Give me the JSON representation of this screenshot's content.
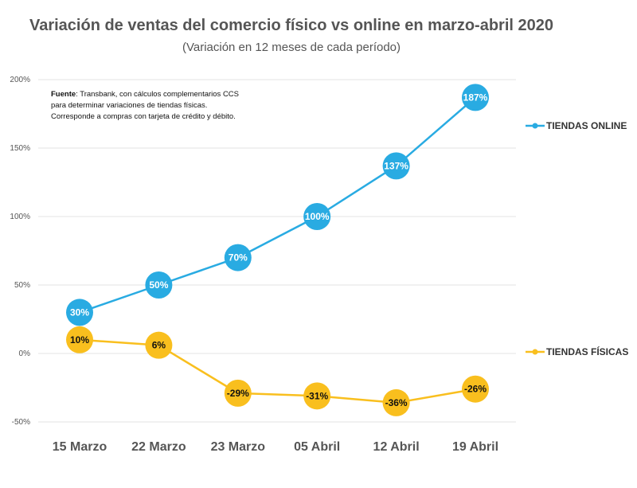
{
  "chart_data": {
    "type": "line",
    "title": "Variación de ventas del comercio físico vs online en marzo-abril 2020",
    "subtitle": "(Variación en 12 meses de cada período)",
    "categories": [
      "15 Marzo",
      "22 Marzo",
      "23 Marzo",
      "05 Abril",
      "12 Abril",
      "19 Abril"
    ],
    "y_ticks": [
      "200%",
      "150%",
      "100%",
      "50%",
      "0%",
      "-50%"
    ],
    "ylim": [
      -50,
      200
    ],
    "grid": true,
    "legend_position": "right",
    "series": [
      {
        "name": "TIENDAS ONLINE",
        "color": "#29abe2",
        "label_color": "#ffffff",
        "values": [
          30,
          50,
          70,
          100,
          137,
          187
        ],
        "labels": [
          "30%",
          "50%",
          "70%",
          "100%",
          "137%",
          "187%"
        ]
      },
      {
        "name": "TIENDAS FÍSICAS",
        "color": "#f9bf1e",
        "label_color": "#111111",
        "values": [
          10,
          6,
          -29,
          -31,
          -36,
          -26
        ],
        "labels": [
          "10%",
          "6%",
          "-29%",
          "-31%",
          "-36%",
          "-26%"
        ]
      }
    ],
    "note": {
      "label": "Fuente",
      "lines": [
        ": Transbank, con cálculos complementarios CCS",
        "para determinar variaciones de tiendas físicas.",
        "Corresponde a compras con tarjeta de crédito y débito."
      ]
    }
  }
}
